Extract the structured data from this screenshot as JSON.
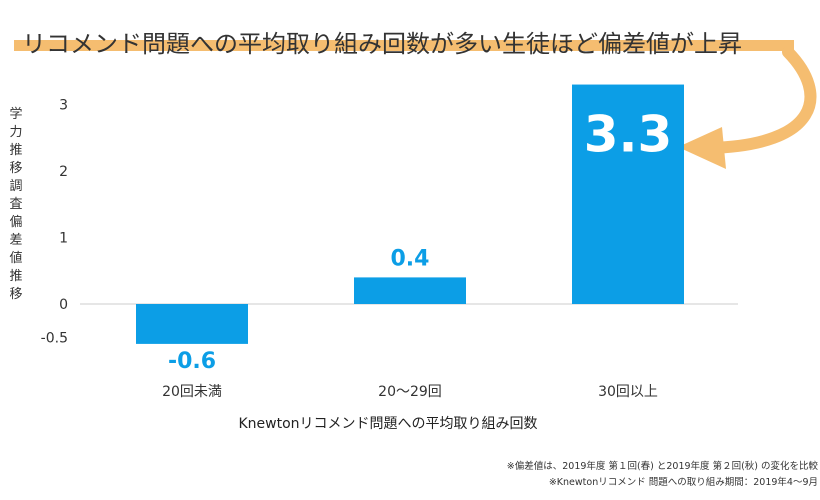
{
  "headline": "リコメンド問題への平均取り組み回数が多い生徒ほど偏差値が上昇",
  "colors": {
    "bar": "#0c9ee6",
    "highlight": "#f5bd70",
    "axis": "#cccccc"
  },
  "chart_data": {
    "type": "bar",
    "categories": [
      "20回未満",
      "20〜29回",
      "30回以上"
    ],
    "values": [
      -0.6,
      0.4,
      3.3
    ],
    "data_labels": [
      "-0.6",
      "0.4",
      "3.3"
    ],
    "ylabel": "学力推移調査偏差値推移",
    "xlabel": "Knewtonリコメンド問題への平均取り組み回数",
    "ylim": [
      -0.6,
      3.4
    ],
    "yticks": [
      {
        "value": 3,
        "label": "3"
      },
      {
        "value": 2,
        "label": "2"
      },
      {
        "value": 1,
        "label": "1"
      },
      {
        "value": 0,
        "label": "0"
      },
      {
        "value": -0.5,
        "label": "-0.5"
      }
    ],
    "grid": false,
    "legend": "none"
  },
  "footnotes": [
    "※偏差値は、2019年度 第１回(春) と2019年度 第２回(秋) の変化を比較",
    "※Knewtonリコメンド 問題への取り組み期間：2019年4〜9月"
  ]
}
